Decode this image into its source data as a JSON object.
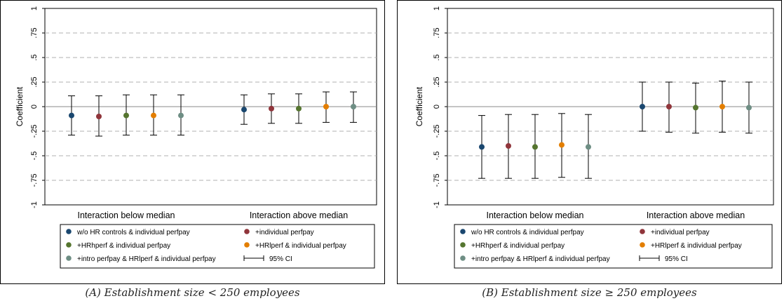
{
  "chart_data": [
    {
      "type": "scatter",
      "ylabel": "Coefficient",
      "ylim": [
        -1,
        1
      ],
      "yticks": [
        "-1",
        "-.75",
        "-.5",
        "-.25",
        "0",
        ".25",
        ".5",
        ".75",
        "1"
      ],
      "ytick_values": [
        -1,
        -0.75,
        -0.5,
        -0.25,
        0,
        0.25,
        0.5,
        0.75,
        1
      ],
      "grid": "dashed horizontal",
      "categories": [
        "Interaction below median",
        "Interaction above median"
      ],
      "series": [
        {
          "name": "w/o HR controls & individual perfpay",
          "color": "#1a476f",
          "values": [
            -0.09,
            -0.03
          ],
          "ci_low": [
            -0.29,
            -0.18
          ],
          "ci_high": [
            0.11,
            0.12
          ]
        },
        {
          "name": "+individual perfpay",
          "color": "#90353b",
          "values": [
            -0.1,
            -0.02
          ],
          "ci_low": [
            -0.3,
            -0.17
          ],
          "ci_high": [
            0.11,
            0.13
          ]
        },
        {
          "name": "+HRhperf & individual perfpay",
          "color": "#55752f",
          "values": [
            -0.09,
            -0.02
          ],
          "ci_low": [
            -0.29,
            -0.17
          ],
          "ci_high": [
            0.12,
            0.13
          ]
        },
        {
          "name": "+HRlperf & individual perfpay",
          "color": "#e37e00",
          "values": [
            -0.09,
            0.0
          ],
          "ci_low": [
            -0.29,
            -0.16
          ],
          "ci_high": [
            0.12,
            0.15
          ]
        },
        {
          "name": "+intro perfpay & HRlperf & individual perfpay",
          "color": "#6e8e84",
          "values": [
            -0.09,
            0.0
          ],
          "ci_low": [
            -0.29,
            -0.16
          ],
          "ci_high": [
            0.12,
            0.15
          ]
        }
      ],
      "legend": {
        "position": "bottom",
        "ci_label": "95% CI"
      },
      "caption": "(A) Establishment size < 250 employees"
    },
    {
      "type": "scatter",
      "ylabel": "Coefficient",
      "ylim": [
        -1,
        1
      ],
      "yticks": [
        "-1",
        "-.75",
        "-.5",
        "-.25",
        "0",
        ".25",
        ".5",
        ".75",
        "1"
      ],
      "ytick_values": [
        -1,
        -0.75,
        -0.5,
        -0.25,
        0,
        0.25,
        0.5,
        0.75,
        1
      ],
      "grid": "dashed horizontal",
      "categories": [
        "Interaction below median",
        "Interaction above median"
      ],
      "series": [
        {
          "name": "w/o HR controls & individual perfpay",
          "color": "#1a476f",
          "values": [
            -0.41,
            0.0
          ],
          "ci_low": [
            -0.73,
            -0.25
          ],
          "ci_high": [
            -0.09,
            0.25
          ]
        },
        {
          "name": "+individual perfpay",
          "color": "#90353b",
          "values": [
            -0.4,
            0.0
          ],
          "ci_low": [
            -0.73,
            -0.26
          ],
          "ci_high": [
            -0.08,
            0.25
          ]
        },
        {
          "name": "+HRhperf & individual perfpay",
          "color": "#55752f",
          "values": [
            -0.41,
            -0.01
          ],
          "ci_low": [
            -0.73,
            -0.27
          ],
          "ci_high": [
            -0.08,
            0.24
          ]
        },
        {
          "name": "+HRlperf & individual perfpay",
          "color": "#e37e00",
          "values": [
            -0.39,
            0.0
          ],
          "ci_low": [
            -0.72,
            -0.26
          ],
          "ci_high": [
            -0.07,
            0.26
          ]
        },
        {
          "name": "+intro perfpay & HRlperf & individual perfpay",
          "color": "#6e8e84",
          "values": [
            -0.41,
            -0.01
          ],
          "ci_low": [
            -0.73,
            -0.27
          ],
          "ci_high": [
            -0.08,
            0.25
          ]
        }
      ],
      "legend": {
        "position": "bottom",
        "ci_label": "95% CI"
      },
      "caption": "(B) Establishment size ≥ 250 employees"
    }
  ]
}
